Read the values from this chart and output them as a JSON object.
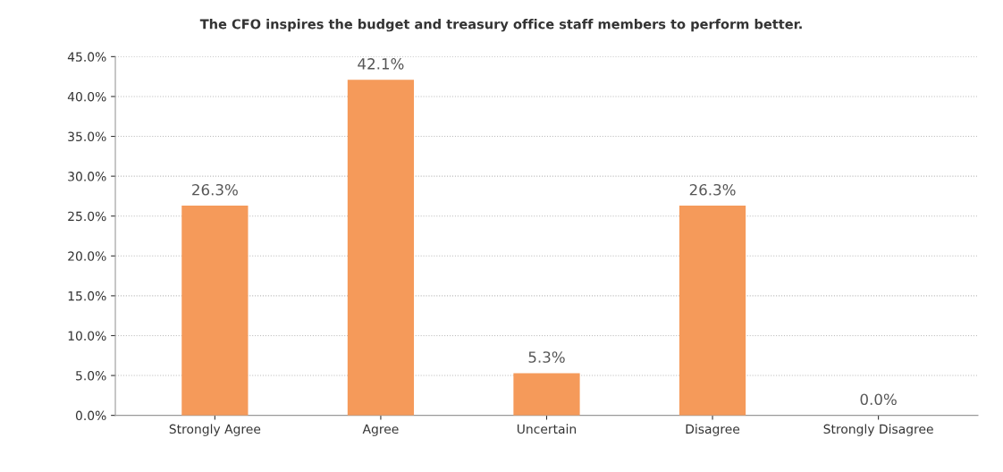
{
  "chart_data": {
    "type": "bar",
    "title": "The CFO inspires the budget and treasury office staff members to perform better.",
    "categories": [
      "Strongly Agree",
      "Agree",
      "Uncertain",
      "Disagree",
      "Strongly Disagree"
    ],
    "values": [
      26.3,
      42.1,
      5.3,
      26.3,
      0.0
    ],
    "value_labels": [
      "26.3%",
      "42.1%",
      "5.3%",
      "26.3%",
      "0.0%"
    ],
    "color": "#f59a5a",
    "ylim": [
      0,
      45
    ],
    "yticks": [
      {
        "value": 0,
        "label": "0.0%"
      },
      {
        "value": 5,
        "label": "5.0%"
      },
      {
        "value": 10,
        "label": "10.0%"
      },
      {
        "value": 15,
        "label": "15.0%"
      },
      {
        "value": 20,
        "label": "20.0%"
      },
      {
        "value": 25,
        "label": "25.0%"
      },
      {
        "value": 30,
        "label": "30.0%"
      },
      {
        "value": 35,
        "label": "35.0%"
      },
      {
        "value": 40,
        "label": "40.0%"
      },
      {
        "value": 45,
        "label": "45.0%"
      }
    ],
    "grid": "y",
    "legend": false
  }
}
